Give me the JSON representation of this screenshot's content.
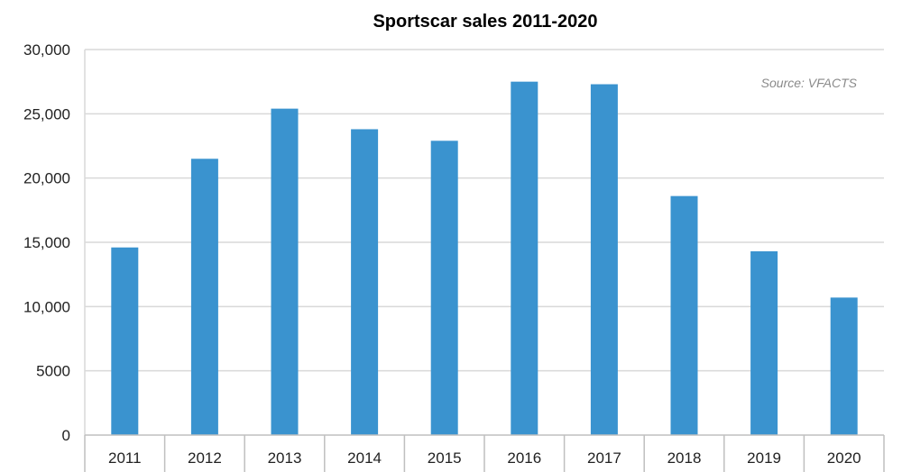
{
  "chart_data": {
    "type": "bar",
    "title": "Sportscar sales 2011-2020",
    "annotation": "Source: VFACTS",
    "categories": [
      "2011",
      "2012",
      "2013",
      "2014",
      "2015",
      "2016",
      "2017",
      "2018",
      "2019",
      "2020"
    ],
    "values": [
      14600,
      21500,
      25400,
      23800,
      22900,
      27500,
      27300,
      18600,
      14300,
      10700
    ],
    "ylim": [
      0,
      30000
    ],
    "yticks": [
      0,
      5000,
      10000,
      15000,
      20000,
      25000,
      30000
    ],
    "ytick_labels": [
      "0",
      "5000",
      "10,000",
      "15,000",
      "20,000",
      "25,000",
      "30,000"
    ],
    "grid": true,
    "bar_color": "#3a93cf",
    "grid_color": "#d9d9d9"
  }
}
